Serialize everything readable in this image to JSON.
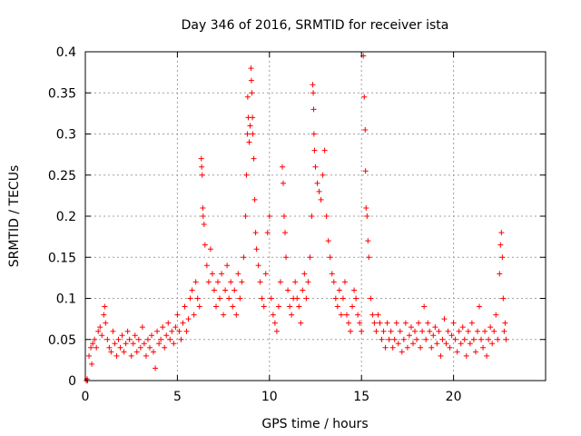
{
  "chart_data": {
    "type": "scatter",
    "title": "Day 346 of 2016, SRMTID for receiver ista",
    "xlabel": "GPS time / hours",
    "ylabel": "SRMTID / TECUs",
    "xlim": [
      0,
      25
    ],
    "ylim": [
      0,
      0.4
    ],
    "grid": true,
    "marker": "+",
    "color": "#ff0000",
    "xticks": [
      {
        "value": 0,
        "label": "0"
      },
      {
        "value": 5,
        "label": "5"
      },
      {
        "value": 10,
        "label": "10"
      },
      {
        "value": 15,
        "label": "15"
      },
      {
        "value": 20,
        "label": "20"
      }
    ],
    "yticks": [
      {
        "value": 0,
        "label": "0"
      },
      {
        "value": 0.05,
        "label": "0.05"
      },
      {
        "value": 0.1,
        "label": "0.1"
      },
      {
        "value": 0.15,
        "label": "0.15"
      },
      {
        "value": 0.2,
        "label": "0.2"
      },
      {
        "value": 0.25,
        "label": "0.25"
      },
      {
        "value": 0.3,
        "label": "0.3"
      },
      {
        "value": 0.35,
        "label": "0.35"
      },
      {
        "value": 0.4,
        "label": "0.4"
      }
    ],
    "series": [
      {
        "name": "SRMTID",
        "points": [
          [
            0.05,
            0.0
          ],
          [
            0.1,
            0.002
          ],
          [
            0.12,
            0.0
          ],
          [
            0.2,
            0.03
          ],
          [
            0.3,
            0.04
          ],
          [
            0.35,
            0.02
          ],
          [
            0.4,
            0.045
          ],
          [
            0.5,
            0.05
          ],
          [
            0.6,
            0.04
          ],
          [
            0.7,
            0.06
          ],
          [
            0.8,
            0.065
          ],
          [
            0.9,
            0.055
          ],
          [
            1.0,
            0.08
          ],
          [
            1.05,
            0.09
          ],
          [
            1.1,
            0.07
          ],
          [
            1.2,
            0.05
          ],
          [
            1.3,
            0.04
          ],
          [
            1.4,
            0.035
          ],
          [
            1.5,
            0.06
          ],
          [
            1.6,
            0.045
          ],
          [
            1.7,
            0.03
          ],
          [
            1.8,
            0.05
          ],
          [
            1.9,
            0.04
          ],
          [
            2.0,
            0.055
          ],
          [
            2.1,
            0.035
          ],
          [
            2.2,
            0.045
          ],
          [
            2.3,
            0.06
          ],
          [
            2.4,
            0.05
          ],
          [
            2.5,
            0.03
          ],
          [
            2.6,
            0.045
          ],
          [
            2.7,
            0.055
          ],
          [
            2.8,
            0.035
          ],
          [
            2.9,
            0.05
          ],
          [
            3.0,
            0.04
          ],
          [
            3.1,
            0.065
          ],
          [
            3.2,
            0.045
          ],
          [
            3.3,
            0.03
          ],
          [
            3.4,
            0.05
          ],
          [
            3.5,
            0.04
          ],
          [
            3.6,
            0.055
          ],
          [
            3.7,
            0.035
          ],
          [
            3.8,
            0.015
          ],
          [
            3.9,
            0.06
          ],
          [
            4.0,
            0.045
          ],
          [
            4.1,
            0.05
          ],
          [
            4.2,
            0.065
          ],
          [
            4.3,
            0.04
          ],
          [
            4.4,
            0.055
          ],
          [
            4.5,
            0.07
          ],
          [
            4.6,
            0.05
          ],
          [
            4.7,
            0.06
          ],
          [
            4.8,
            0.045
          ],
          [
            4.9,
            0.065
          ],
          [
            5.0,
            0.08
          ],
          [
            5.1,
            0.06
          ],
          [
            5.2,
            0.05
          ],
          [
            5.3,
            0.07
          ],
          [
            5.4,
            0.09
          ],
          [
            5.5,
            0.06
          ],
          [
            5.6,
            0.075
          ],
          [
            5.7,
            0.1
          ],
          [
            5.8,
            0.11
          ],
          [
            5.9,
            0.08
          ],
          [
            6.0,
            0.12
          ],
          [
            6.1,
            0.1
          ],
          [
            6.2,
            0.09
          ],
          [
            6.3,
            0.27
          ],
          [
            6.32,
            0.26
          ],
          [
            6.35,
            0.25
          ],
          [
            6.38,
            0.21
          ],
          [
            6.4,
            0.2
          ],
          [
            6.45,
            0.19
          ],
          [
            6.5,
            0.165
          ],
          [
            6.6,
            0.14
          ],
          [
            6.7,
            0.12
          ],
          [
            6.8,
            0.16
          ],
          [
            6.9,
            0.13
          ],
          [
            7.0,
            0.11
          ],
          [
            7.1,
            0.09
          ],
          [
            7.2,
            0.12
          ],
          [
            7.3,
            0.1
          ],
          [
            7.4,
            0.13
          ],
          [
            7.5,
            0.08
          ],
          [
            7.6,
            0.11
          ],
          [
            7.7,
            0.14
          ],
          [
            7.8,
            0.1
          ],
          [
            7.9,
            0.12
          ],
          [
            8.0,
            0.09
          ],
          [
            8.1,
            0.11
          ],
          [
            8.2,
            0.08
          ],
          [
            8.3,
            0.13
          ],
          [
            8.4,
            0.1
          ],
          [
            8.5,
            0.12
          ],
          [
            8.6,
            0.15
          ],
          [
            8.7,
            0.2
          ],
          [
            8.75,
            0.25
          ],
          [
            8.8,
            0.3
          ],
          [
            8.82,
            0.345
          ],
          [
            8.85,
            0.32
          ],
          [
            8.9,
            0.29
          ],
          [
            8.95,
            0.31
          ],
          [
            9.0,
            0.38
          ],
          [
            9.02,
            0.365
          ],
          [
            9.05,
            0.35
          ],
          [
            9.08,
            0.32
          ],
          [
            9.1,
            0.3
          ],
          [
            9.15,
            0.27
          ],
          [
            9.2,
            0.22
          ],
          [
            9.25,
            0.18
          ],
          [
            9.3,
            0.16
          ],
          [
            9.4,
            0.14
          ],
          [
            9.5,
            0.12
          ],
          [
            9.6,
            0.1
          ],
          [
            9.7,
            0.09
          ],
          [
            9.8,
            0.13
          ],
          [
            9.9,
            0.18
          ],
          [
            10.0,
            0.2
          ],
          [
            10.1,
            0.1
          ],
          [
            10.2,
            0.08
          ],
          [
            10.3,
            0.07
          ],
          [
            10.4,
            0.06
          ],
          [
            10.5,
            0.09
          ],
          [
            10.6,
            0.12
          ],
          [
            10.7,
            0.26
          ],
          [
            10.75,
            0.24
          ],
          [
            10.8,
            0.2
          ],
          [
            10.85,
            0.18
          ],
          [
            10.9,
            0.15
          ],
          [
            11.0,
            0.11
          ],
          [
            11.1,
            0.09
          ],
          [
            11.2,
            0.08
          ],
          [
            11.3,
            0.1
          ],
          [
            11.4,
            0.12
          ],
          [
            11.5,
            0.1
          ],
          [
            11.6,
            0.09
          ],
          [
            11.7,
            0.07
          ],
          [
            11.8,
            0.11
          ],
          [
            11.9,
            0.13
          ],
          [
            12.0,
            0.1
          ],
          [
            12.1,
            0.12
          ],
          [
            12.2,
            0.15
          ],
          [
            12.3,
            0.2
          ],
          [
            12.35,
            0.36
          ],
          [
            12.38,
            0.35
          ],
          [
            12.4,
            0.33
          ],
          [
            12.42,
            0.3
          ],
          [
            12.45,
            0.28
          ],
          [
            12.5,
            0.26
          ],
          [
            12.6,
            0.24
          ],
          [
            12.7,
            0.23
          ],
          [
            12.8,
            0.22
          ],
          [
            12.9,
            0.25
          ],
          [
            13.0,
            0.28
          ],
          [
            13.1,
            0.2
          ],
          [
            13.2,
            0.17
          ],
          [
            13.3,
            0.15
          ],
          [
            13.4,
            0.13
          ],
          [
            13.5,
            0.12
          ],
          [
            13.6,
            0.1
          ],
          [
            13.7,
            0.09
          ],
          [
            13.8,
            0.11
          ],
          [
            13.9,
            0.08
          ],
          [
            14.0,
            0.1
          ],
          [
            14.1,
            0.12
          ],
          [
            14.2,
            0.08
          ],
          [
            14.3,
            0.07
          ],
          [
            14.4,
            0.06
          ],
          [
            14.5,
            0.09
          ],
          [
            14.6,
            0.11
          ],
          [
            14.7,
            0.1
          ],
          [
            14.8,
            0.08
          ],
          [
            14.9,
            0.07
          ],
          [
            15.0,
            0.06
          ],
          [
            15.1,
            0.395
          ],
          [
            15.15,
            0.345
          ],
          [
            15.2,
            0.305
          ],
          [
            15.22,
            0.255
          ],
          [
            15.25,
            0.21
          ],
          [
            15.3,
            0.2
          ],
          [
            15.35,
            0.17
          ],
          [
            15.4,
            0.15
          ],
          [
            15.5,
            0.1
          ],
          [
            15.6,
            0.08
          ],
          [
            15.7,
            0.07
          ],
          [
            15.8,
            0.06
          ],
          [
            15.9,
            0.08
          ],
          [
            16.0,
            0.07
          ],
          [
            16.1,
            0.05
          ],
          [
            16.2,
            0.06
          ],
          [
            16.3,
            0.04
          ],
          [
            16.4,
            0.07
          ],
          [
            16.5,
            0.05
          ],
          [
            16.6,
            0.06
          ],
          [
            16.7,
            0.04
          ],
          [
            16.8,
            0.05
          ],
          [
            16.9,
            0.07
          ],
          [
            17.0,
            0.045
          ],
          [
            17.1,
            0.06
          ],
          [
            17.2,
            0.035
          ],
          [
            17.3,
            0.05
          ],
          [
            17.4,
            0.07
          ],
          [
            17.5,
            0.04
          ],
          [
            17.6,
            0.055
          ],
          [
            17.7,
            0.065
          ],
          [
            17.8,
            0.045
          ],
          [
            17.9,
            0.06
          ],
          [
            18.0,
            0.05
          ],
          [
            18.1,
            0.07
          ],
          [
            18.2,
            0.04
          ],
          [
            18.3,
            0.06
          ],
          [
            18.4,
            0.09
          ],
          [
            18.5,
            0.05
          ],
          [
            18.6,
            0.07
          ],
          [
            18.7,
            0.06
          ],
          [
            18.8,
            0.04
          ],
          [
            18.9,
            0.055
          ],
          [
            19.0,
            0.065
          ],
          [
            19.1,
            0.045
          ],
          [
            19.2,
            0.06
          ],
          [
            19.3,
            0.03
          ],
          [
            19.4,
            0.05
          ],
          [
            19.5,
            0.075
          ],
          [
            19.6,
            0.045
          ],
          [
            19.7,
            0.06
          ],
          [
            19.8,
            0.04
          ],
          [
            19.9,
            0.055
          ],
          [
            20.0,
            0.07
          ],
          [
            20.1,
            0.05
          ],
          [
            20.2,
            0.035
          ],
          [
            20.3,
            0.06
          ],
          [
            20.4,
            0.045
          ],
          [
            20.5,
            0.065
          ],
          [
            20.6,
            0.05
          ],
          [
            20.7,
            0.03
          ],
          [
            20.8,
            0.06
          ],
          [
            20.9,
            0.045
          ],
          [
            21.0,
            0.07
          ],
          [
            21.1,
            0.05
          ],
          [
            21.2,
            0.035
          ],
          [
            21.3,
            0.06
          ],
          [
            21.4,
            0.09
          ],
          [
            21.5,
            0.05
          ],
          [
            21.6,
            0.04
          ],
          [
            21.7,
            0.06
          ],
          [
            21.8,
            0.03
          ],
          [
            21.9,
            0.05
          ],
          [
            22.0,
            0.065
          ],
          [
            22.1,
            0.045
          ],
          [
            22.2,
            0.06
          ],
          [
            22.3,
            0.08
          ],
          [
            22.4,
            0.05
          ],
          [
            22.5,
            0.13
          ],
          [
            22.55,
            0.165
          ],
          [
            22.6,
            0.18
          ],
          [
            22.65,
            0.15
          ],
          [
            22.7,
            0.1
          ],
          [
            22.75,
            0.06
          ],
          [
            22.8,
            0.07
          ],
          [
            22.85,
            0.05
          ]
        ]
      }
    ]
  }
}
